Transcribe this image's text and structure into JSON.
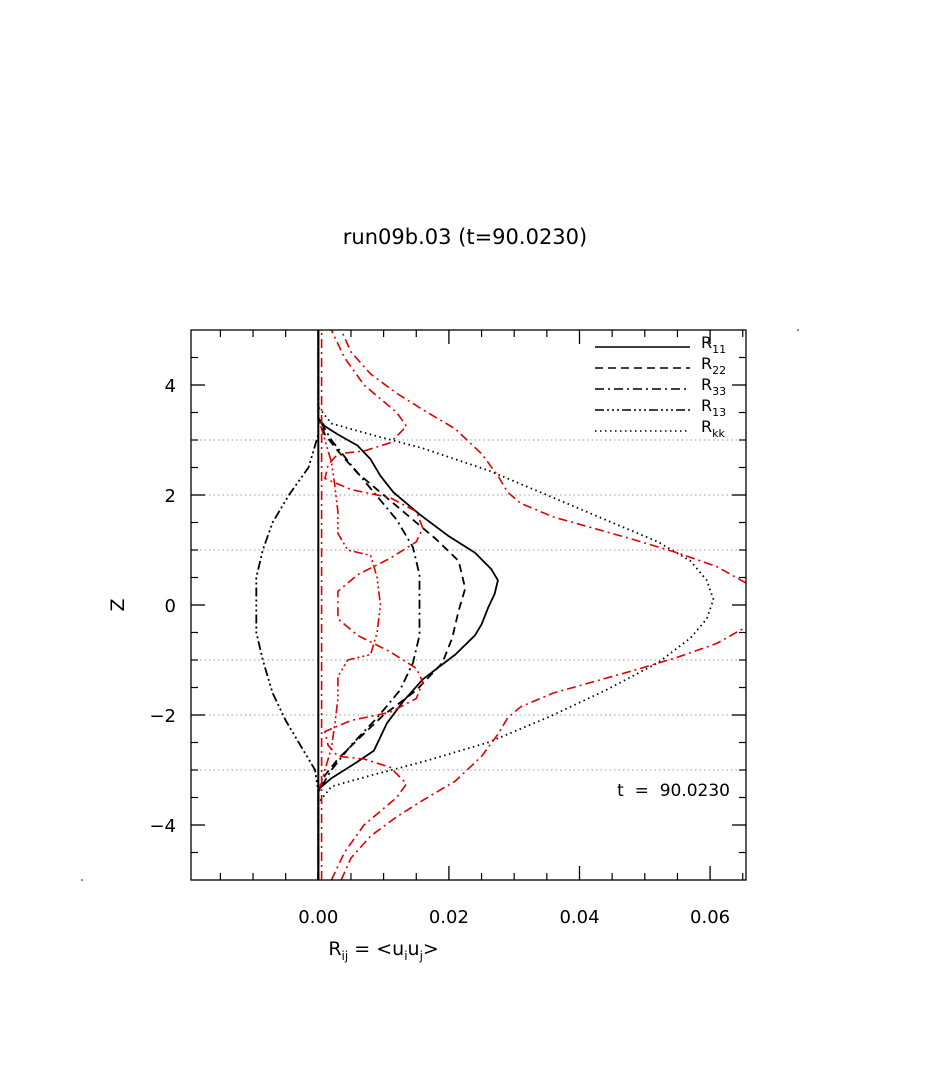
{
  "chart_data": {
    "type": "line",
    "title": "run09b.03 (t=90.0230)",
    "xlabel": "R",
    "xlabel_sub": "ij",
    "xlabel_eq": " = <u",
    "xlabel_sub_i": "i",
    "xlabel_u": "u",
    "xlabel_sub_j": "j",
    "xlabel_close": ">",
    "ylabel": "Z",
    "xlim": [
      -0.0195,
      0.0655
    ],
    "ylim": [
      -5,
      5
    ],
    "xticks": [
      0.0,
      0.02,
      0.04,
      0.06
    ],
    "xtick_labels": [
      "0.00",
      "0.02",
      "0.04",
      "0.06"
    ],
    "yticks": [
      -4,
      -2,
      0,
      2,
      4
    ],
    "ytick_labels": [
      "−4",
      "−2",
      "0",
      "2",
      "4"
    ],
    "hgrid_z": [
      -3,
      -2,
      -1,
      1,
      2,
      3
    ],
    "grid": "horizontal dotted gray",
    "annotation": "t  =  90.0230",
    "legend_position": "top-right",
    "series": [
      {
        "name": "R",
        "sub": "11",
        "color": "#000000",
        "dash": "solid",
        "in_legend": true,
        "points": [
          [
            0,
            -5
          ],
          [
            0,
            -3.35
          ],
          [
            0.002,
            -3.15
          ],
          [
            0.006,
            -2.85
          ],
          [
            0.0085,
            -2.65
          ],
          [
            0.0095,
            -2.4
          ],
          [
            0.0105,
            -2.15
          ],
          [
            0.013,
            -1.75
          ],
          [
            0.016,
            -1.35
          ],
          [
            0.021,
            -0.9
          ],
          [
            0.024,
            -0.55
          ],
          [
            0.025,
            -0.35
          ],
          [
            0.026,
            -0.05
          ],
          [
            0.027,
            0.2
          ],
          [
            0.0275,
            0.45
          ],
          [
            0.0265,
            0.65
          ],
          [
            0.024,
            0.95
          ],
          [
            0.02,
            1.25
          ],
          [
            0.0155,
            1.65
          ],
          [
            0.0115,
            2.05
          ],
          [
            0.0095,
            2.35
          ],
          [
            0.008,
            2.65
          ],
          [
            0.006,
            2.9
          ],
          [
            0.003,
            3.1
          ],
          [
            0.001,
            3.25
          ],
          [
            0,
            3.4
          ],
          [
            0,
            5
          ]
        ]
      },
      {
        "name": "R",
        "sub": "22",
        "color": "#000000",
        "dash": "dash",
        "in_legend": true,
        "points": [
          [
            0,
            -5
          ],
          [
            0,
            -3.4
          ],
          [
            0.001,
            -3.1
          ],
          [
            0.003,
            -2.8
          ],
          [
            0.006,
            -2.45
          ],
          [
            0.01,
            -2.0
          ],
          [
            0.015,
            -1.55
          ],
          [
            0.019,
            -1.05
          ],
          [
            0.0205,
            -0.6
          ],
          [
            0.0215,
            -0.1
          ],
          [
            0.0225,
            0.3
          ],
          [
            0.0215,
            0.8
          ],
          [
            0.018,
            1.2
          ],
          [
            0.014,
            1.6
          ],
          [
            0.01,
            2.0
          ],
          [
            0.006,
            2.4
          ],
          [
            0.003,
            2.8
          ],
          [
            0.001,
            3.1
          ],
          [
            0,
            3.4
          ],
          [
            0,
            5
          ]
        ]
      },
      {
        "name": "R",
        "sub": "33",
        "color": "#000000",
        "dash": "dashdot",
        "in_legend": true,
        "points": [
          [
            0,
            -5
          ],
          [
            0,
            -3.4
          ],
          [
            0.002,
            -3.0
          ],
          [
            0.005,
            -2.55
          ],
          [
            0.009,
            -2.05
          ],
          [
            0.0125,
            -1.55
          ],
          [
            0.0145,
            -1.05
          ],
          [
            0.0155,
            -0.55
          ],
          [
            0.0155,
            0
          ],
          [
            0.0155,
            0.55
          ],
          [
            0.0145,
            1.05
          ],
          [
            0.012,
            1.55
          ],
          [
            0.0085,
            2.05
          ],
          [
            0.005,
            2.55
          ],
          [
            0.002,
            3.0
          ],
          [
            0,
            3.4
          ],
          [
            0,
            5
          ]
        ]
      },
      {
        "name": "R",
        "sub": "13",
        "color": "#000000",
        "dash": "dashdotdotdot",
        "in_legend": true,
        "points": [
          [
            0,
            -5
          ],
          [
            0,
            -3.4
          ],
          [
            -0.0005,
            -3.0
          ],
          [
            -0.0025,
            -2.6
          ],
          [
            -0.005,
            -2.1
          ],
          [
            -0.007,
            -1.6
          ],
          [
            -0.0085,
            -1.0
          ],
          [
            -0.0095,
            -0.5
          ],
          [
            -0.0095,
            0
          ],
          [
            -0.0095,
            0.5
          ],
          [
            -0.0085,
            1.0
          ],
          [
            -0.007,
            1.5
          ],
          [
            -0.0045,
            2.0
          ],
          [
            -0.0015,
            2.5
          ],
          [
            0,
            3.1
          ],
          [
            0,
            5
          ]
        ]
      },
      {
        "name": "R",
        "sub": "kk",
        "color": "#000000",
        "dash": "dot",
        "in_legend": true,
        "points": [
          [
            0,
            -5
          ],
          [
            0,
            -3.6
          ],
          [
            0.002,
            -3.3
          ],
          [
            0.008,
            -3.1
          ],
          [
            0.016,
            -2.85
          ],
          [
            0.026,
            -2.5
          ],
          [
            0.035,
            -2.05
          ],
          [
            0.044,
            -1.55
          ],
          [
            0.052,
            -1.05
          ],
          [
            0.057,
            -0.6
          ],
          [
            0.0595,
            -0.25
          ],
          [
            0.0605,
            0.1
          ],
          [
            0.0595,
            0.45
          ],
          [
            0.057,
            0.8
          ],
          [
            0.052,
            1.15
          ],
          [
            0.044,
            1.55
          ],
          [
            0.035,
            2.0
          ],
          [
            0.026,
            2.45
          ],
          [
            0.016,
            2.85
          ],
          [
            0.008,
            3.1
          ],
          [
            0.002,
            3.3
          ],
          [
            0,
            3.6
          ],
          [
            0,
            5
          ]
        ]
      },
      {
        "name": "",
        "color": "#e00000",
        "dash": "dashdot",
        "in_legend": false,
        "points": [
          [
            0.0035,
            -5
          ],
          [
            0.005,
            -4.6
          ],
          [
            0.008,
            -4.2
          ],
          [
            0.012,
            -3.85
          ],
          [
            0.016,
            -3.55
          ],
          [
            0.021,
            -3.2
          ],
          [
            0.025,
            -2.75
          ],
          [
            0.0275,
            -2.35
          ],
          [
            0.029,
            -2.05
          ],
          [
            0.031,
            -1.85
          ],
          [
            0.036,
            -1.6
          ],
          [
            0.042,
            -1.4
          ],
          [
            0.048,
            -1.2
          ],
          [
            0.055,
            -0.95
          ],
          [
            0.061,
            -0.7
          ],
          [
            0.0655,
            -0.4
          ]
        ]
      },
      {
        "name": "",
        "color": "#e00000",
        "dash": "dashdot",
        "in_legend": false,
        "points": [
          [
            0.0655,
            0.4
          ],
          [
            0.061,
            0.7
          ],
          [
            0.055,
            0.95
          ],
          [
            0.048,
            1.2
          ],
          [
            0.042,
            1.4
          ],
          [
            0.036,
            1.6
          ],
          [
            0.031,
            1.85
          ],
          [
            0.029,
            2.05
          ],
          [
            0.0275,
            2.35
          ],
          [
            0.025,
            2.75
          ],
          [
            0.021,
            3.2
          ],
          [
            0.016,
            3.55
          ],
          [
            0.012,
            3.85
          ],
          [
            0.008,
            4.2
          ],
          [
            0.005,
            4.6
          ],
          [
            0.0035,
            5
          ]
        ]
      },
      {
        "name": "",
        "color": "#e00000",
        "dash": "dashdot",
        "in_legend": false,
        "points": [
          [
            0.002,
            -5
          ],
          [
            0.004,
            -4.5
          ],
          [
            0.007,
            -4.0
          ],
          [
            0.012,
            -3.5
          ],
          [
            0.0135,
            -3.25
          ],
          [
            0.011,
            -2.95
          ],
          [
            0.007,
            -2.8
          ],
          [
            0.003,
            -2.75
          ],
          [
            0.0015,
            -2.55
          ],
          [
            0.001,
            -2.3
          ],
          [
            0.005,
            -2.1
          ],
          [
            0.011,
            -1.95
          ],
          [
            0.015,
            -1.7
          ],
          [
            0.016,
            -1.4
          ],
          [
            0.015,
            -1.15
          ],
          [
            0.011,
            -0.85
          ],
          [
            0.006,
            -0.55
          ],
          [
            0.003,
            -0.25
          ],
          [
            0.003,
            0.25
          ],
          [
            0.006,
            0.55
          ],
          [
            0.011,
            0.85
          ],
          [
            0.015,
            1.15
          ],
          [
            0.016,
            1.4
          ],
          [
            0.015,
            1.7
          ],
          [
            0.011,
            1.95
          ],
          [
            0.005,
            2.1
          ],
          [
            0.001,
            2.3
          ],
          [
            0.0015,
            2.55
          ],
          [
            0.003,
            2.75
          ],
          [
            0.007,
            2.8
          ],
          [
            0.011,
            2.95
          ],
          [
            0.0135,
            3.25
          ],
          [
            0.012,
            3.5
          ],
          [
            0.007,
            4.0
          ],
          [
            0.004,
            4.5
          ],
          [
            0.002,
            5
          ]
        ]
      },
      {
        "name": "",
        "color": "#e00000",
        "dash": "dashdotdotdot",
        "in_legend": false,
        "points": [
          [
            0,
            -3.4
          ],
          [
            0.001,
            -3.0
          ],
          [
            0.002,
            -2.6
          ],
          [
            0.0025,
            -2.2
          ],
          [
            0.003,
            -1.7
          ],
          [
            0.003,
            -1.3
          ],
          [
            0.0045,
            -1.0
          ],
          [
            0.008,
            -0.9
          ],
          [
            0.009,
            -0.5
          ],
          [
            0.0095,
            0
          ],
          [
            0.009,
            0.5
          ],
          [
            0.008,
            0.9
          ],
          [
            0.0045,
            1.0
          ],
          [
            0.003,
            1.3
          ],
          [
            0.003,
            1.7
          ],
          [
            0.0025,
            2.2
          ],
          [
            0.002,
            2.6
          ],
          [
            0.001,
            3.0
          ],
          [
            0,
            3.4
          ]
        ]
      },
      {
        "name": "",
        "color": "#e00000",
        "dash": "dashdot",
        "in_legend": false,
        "points": [
          [
            0.0005,
            -5
          ],
          [
            0.0005,
            5
          ]
        ]
      }
    ]
  }
}
